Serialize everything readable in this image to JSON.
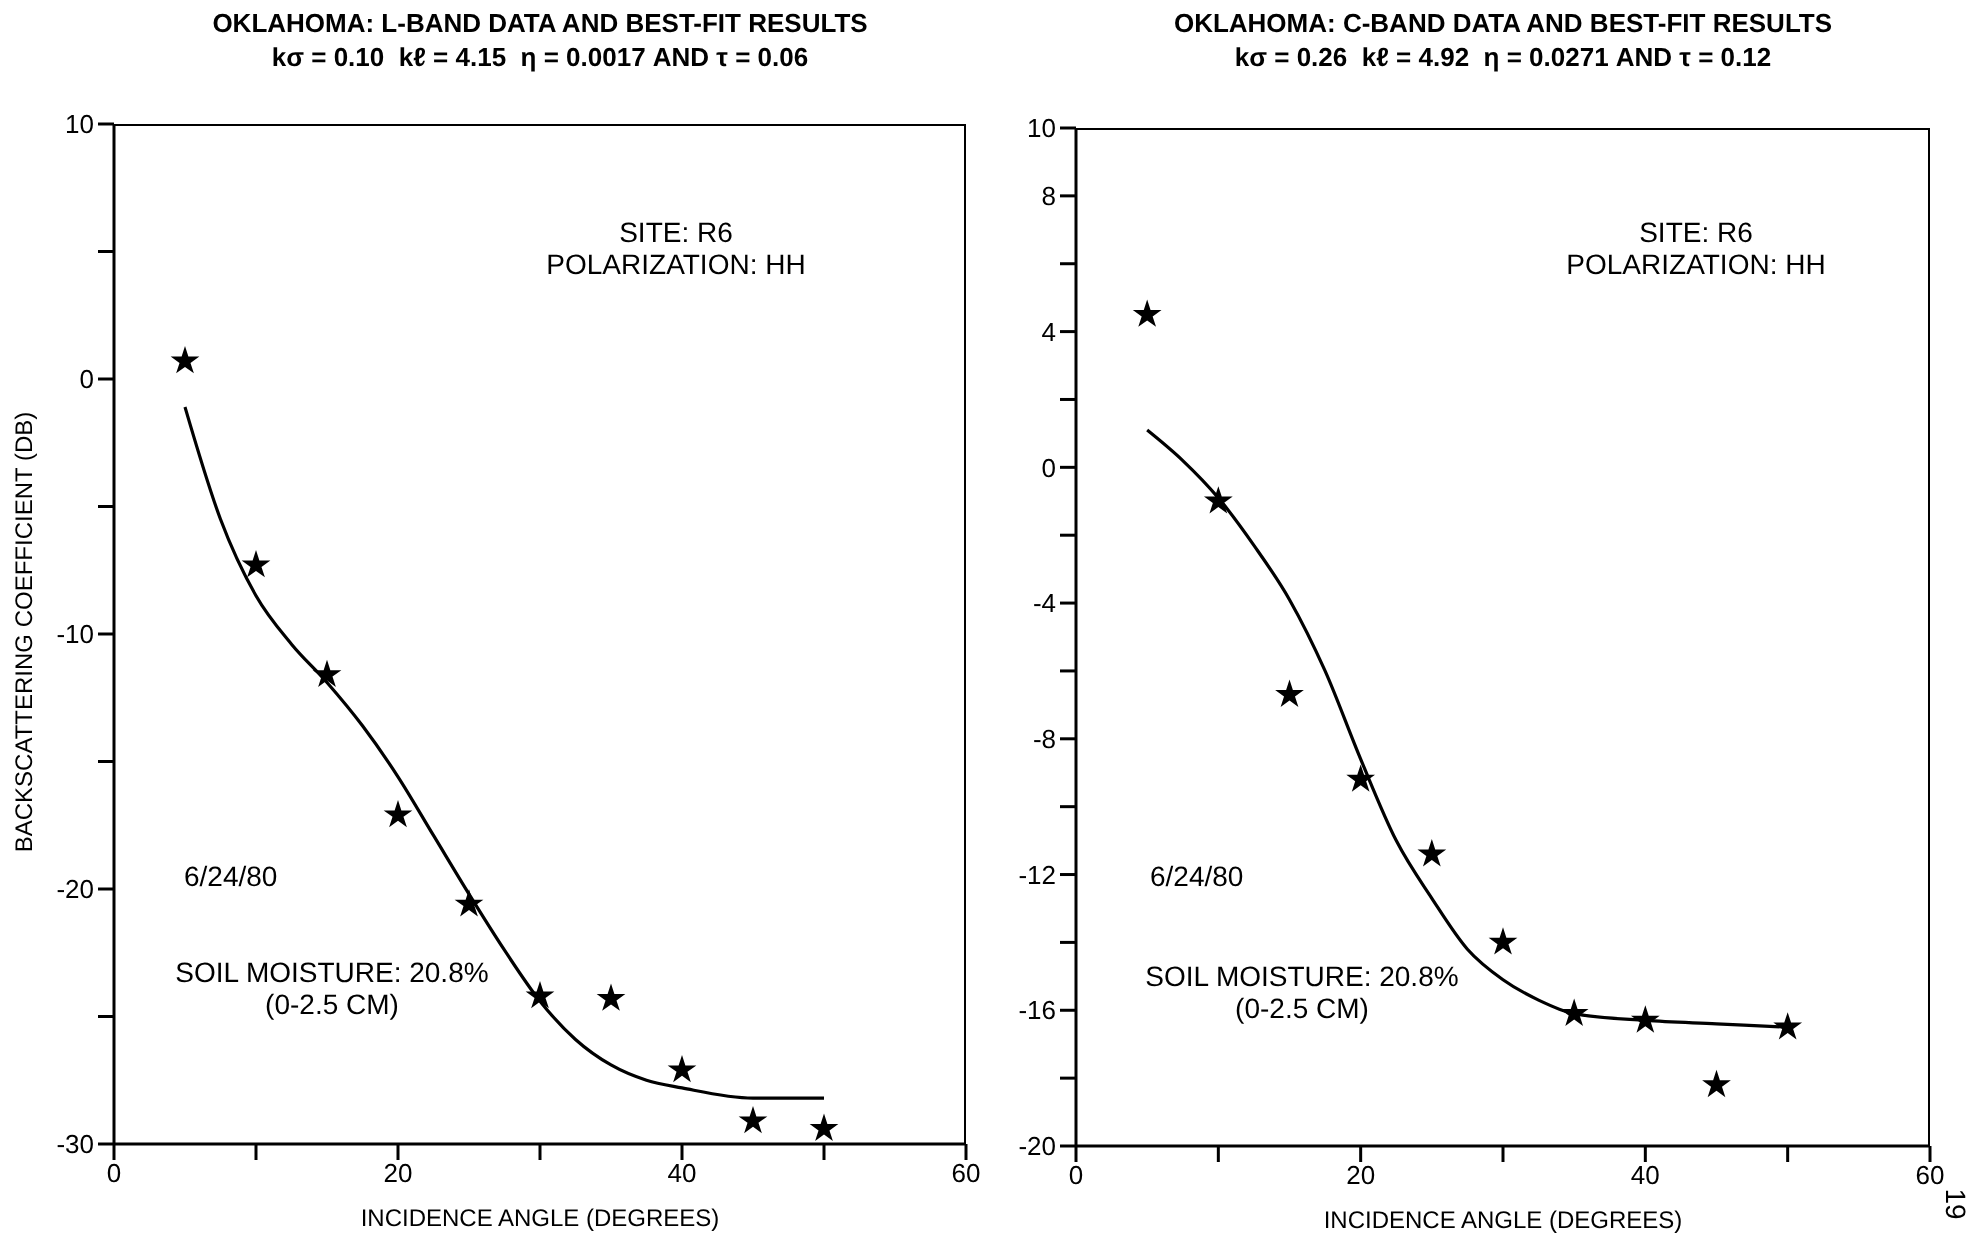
{
  "chart_data": [
    {
      "type": "scatter",
      "title": "OKLAHOMA: L-BAND DATA AND BEST-FIT RESULTS",
      "subtitle": "kσ = 0.10  kℓ = 4.15  η = 0.0017 AND τ = 0.06",
      "xlabel": "INCIDENCE ANGLE (DEGREES)",
      "ylabel": "BACKSCATTERING COEFFICIENT (DB)",
      "x": [
        5,
        10,
        15,
        20,
        25,
        30,
        35,
        40,
        45,
        50
      ],
      "series": [
        {
          "type": "scatter",
          "color": "#000000",
          "marker": "star",
          "values": [
            0.7,
            -7.3,
            -11.6,
            -17.1,
            -20.6,
            -24.2,
            -24.3,
            -27.1,
            -29.1,
            -29.4
          ]
        },
        {
          "type": "line",
          "color": "#000000",
          "marker": "none",
          "x": [
            5,
            7.5,
            10,
            12.5,
            15,
            17.5,
            20,
            22.5,
            25,
            27.5,
            30,
            32.5,
            35,
            37.5,
            40,
            45,
            50
          ],
          "values": [
            -1.1,
            -5.5,
            -8.5,
            -10.4,
            -11.9,
            -13.6,
            -15.6,
            -17.9,
            -20.2,
            -22.4,
            -24.4,
            -25.9,
            -26.9,
            -27.5,
            -27.8,
            -28.2,
            -28.2
          ]
        }
      ],
      "xlim": [
        0,
        60
      ],
      "xticks": [
        0,
        {
          "value": 10,
          "label": null
        },
        20,
        {
          "value": 30,
          "label": null
        },
        40,
        {
          "value": 50,
          "label": null
        },
        60
      ],
      "ylim": [
        -30,
        10
      ],
      "yticks": [
        {
          "value": -30,
          "label": "-30"
        },
        {
          "value": -25,
          "label": null
        },
        {
          "value": -20,
          "label": "-20"
        },
        {
          "value": -15,
          "label": null
        },
        {
          "value": -10,
          "label": "-10"
        },
        {
          "value": -5,
          "label": null
        },
        0,
        {
          "value": 5,
          "label": null
        },
        10
      ],
      "grid": false,
      "annotations": [
        "SITE: R6\nPOLARIZATION: HH",
        "6/24/80",
        "SOIL MOISTURE: 20.8%\n(0-2.5 CM)"
      ]
    },
    {
      "type": "scatter",
      "title": "OKLAHOMA: C-BAND DATA AND BEST-FIT RESULTS",
      "subtitle": "kσ = 0.26  kℓ = 4.92  η = 0.0271 AND τ = 0.12",
      "xlabel": "INCIDENCE ANGLE (DEGREES)",
      "x": [
        5,
        10,
        15,
        20,
        25,
        30,
        35,
        40,
        45,
        50
      ],
      "series": [
        {
          "type": "scatter",
          "color": "#000000",
          "marker": "star",
          "values": [
            4.5,
            -1.0,
            -6.7,
            -9.2,
            -11.4,
            -14.0,
            -16.1,
            -16.3,
            -18.2,
            -16.5
          ]
        },
        {
          "type": "line",
          "color": "#000000",
          "marker": "none",
          "x": [
            5,
            7.5,
            10,
            12.5,
            15,
            17.5,
            20,
            22.5,
            25,
            27.5,
            30,
            32.5,
            35,
            40,
            45,
            50
          ],
          "values": [
            1.1,
            0.2,
            -0.9,
            -2.3,
            -3.9,
            -6.0,
            -8.6,
            -11.0,
            -12.7,
            -14.2,
            -15.1,
            -15.7,
            -16.1,
            -16.3,
            -16.4,
            -16.5
          ]
        }
      ],
      "xlim": [
        0,
        60
      ],
      "xticks": [
        0,
        {
          "value": 10,
          "label": null
        },
        20,
        {
          "value": 30,
          "label": null
        },
        40,
        {
          "value": 50,
          "label": null
        },
        60
      ],
      "ylim": [
        -20,
        10
      ],
      "yticks": [
        {
          "value": -20,
          "label": "-20"
        },
        {
          "value": -18,
          "label": null
        },
        {
          "value": -16,
          "label": "-16"
        },
        {
          "value": -14,
          "label": null
        },
        {
          "value": -12,
          "label": "-12"
        },
        {
          "value": -10,
          "label": null
        },
        {
          "value": -8,
          "label": "-8"
        },
        {
          "value": -6,
          "label": null
        },
        {
          "value": -4,
          "label": "-4"
        },
        {
          "value": -2,
          "label": null
        },
        0,
        {
          "value": 2,
          "label": null
        },
        4,
        {
          "value": 6,
          "label": null
        },
        8,
        10
      ],
      "grid": false,
      "annotations": [
        "SITE: R6\nPOLARIZATION: HH",
        "6/24/80",
        "SOIL MOISTURE: 20.8%\n(0-2.5 CM)",
        "19"
      ]
    }
  ]
}
